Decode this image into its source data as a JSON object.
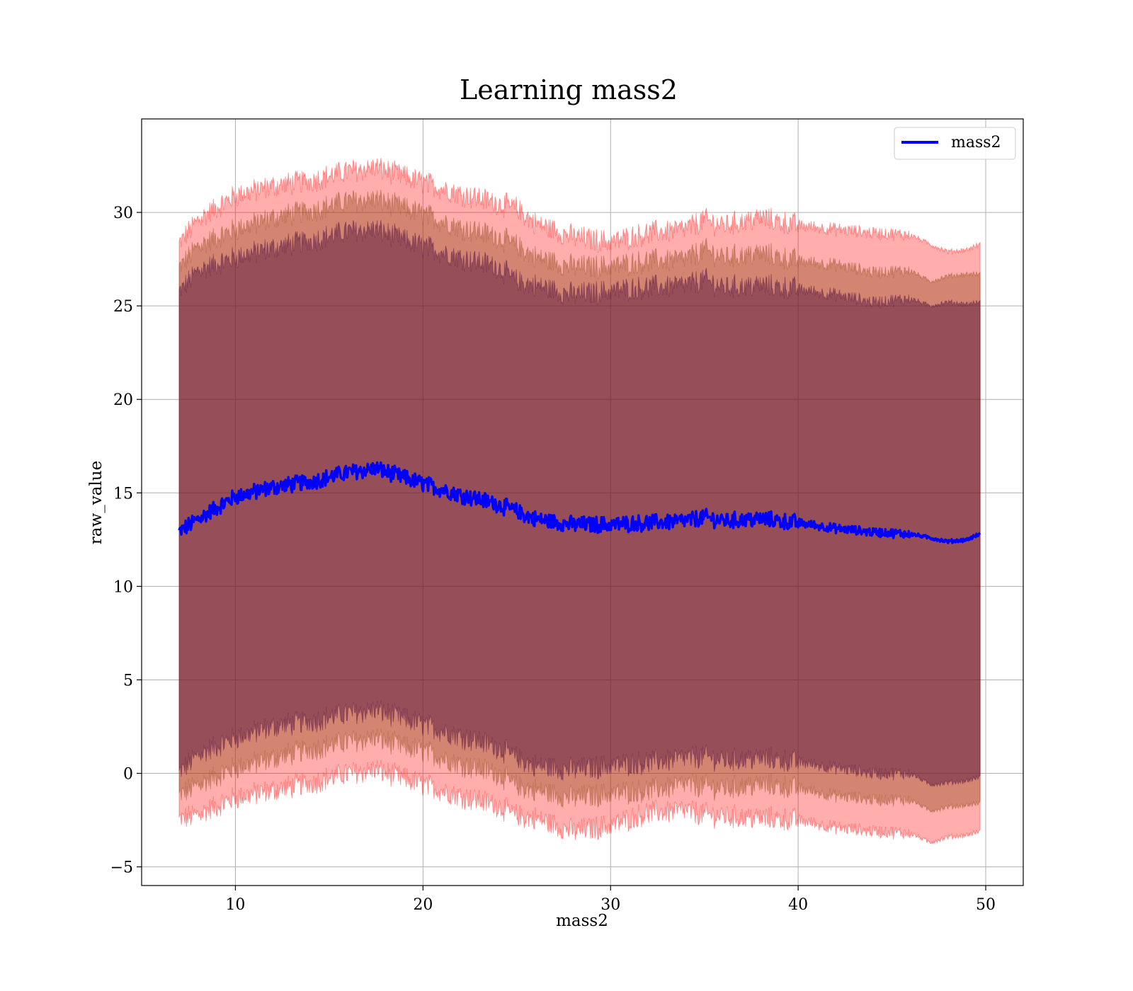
{
  "chart_data": {
    "type": "line",
    "title": "Learning mass2",
    "xlabel": "mass2",
    "ylabel": "raw_value",
    "xlim": [
      5,
      52
    ],
    "ylim": [
      -6,
      35
    ],
    "xticks": [
      10,
      20,
      30,
      40,
      50
    ],
    "yticks": [
      -5,
      0,
      5,
      10,
      15,
      20,
      25,
      30
    ],
    "ytick_labels": [
      "−5",
      "0",
      "5",
      "10",
      "15",
      "20",
      "25",
      "30"
    ],
    "grid": true,
    "legend": {
      "placement": "top-right",
      "entries": [
        "mass2"
      ]
    },
    "colors": {
      "line": "#0000ff",
      "outer_band": "#ff0000",
      "middle_band": "#8b4513",
      "inner_band": "#4b0a3c"
    },
    "x_range": [
      7,
      49.7
    ],
    "series": [
      {
        "name": "mass2",
        "x": [
          7,
          8,
          10,
          12,
          14,
          16,
          17.5,
          19,
          20,
          22,
          24,
          25,
          26,
          28,
          30,
          32,
          34,
          35,
          36,
          38,
          40,
          42,
          44,
          46,
          47,
          48,
          49,
          49.7
        ],
        "values": [
          12.9,
          13.6,
          14.8,
          15.3,
          15.6,
          16.1,
          16.3,
          15.8,
          15.5,
          14.9,
          14.4,
          14.0,
          13.6,
          13.3,
          13.3,
          13.4,
          13.5,
          13.7,
          13.5,
          13.6,
          13.4,
          13.1,
          12.9,
          12.8,
          12.6,
          12.4,
          12.5,
          12.8
        ]
      }
    ],
    "bands": [
      {
        "level": "outer",
        "upper": [
          28.3,
          29.6,
          30.9,
          31.4,
          31.7,
          32.2,
          32.4,
          31.9,
          31.6,
          31.0,
          30.5,
          30.2,
          29.4,
          28.7,
          28.4,
          28.9,
          29.1,
          29.6,
          29.3,
          29.7,
          29.3,
          29.1,
          28.9,
          28.8,
          28.3,
          27.9,
          28.0,
          28.3
        ],
        "lower": [
          -2.5,
          -2.2,
          -1.3,
          -0.9,
          -0.5,
          0.0,
          0.2,
          -0.3,
          -0.6,
          -1.2,
          -1.7,
          -2.3,
          -2.4,
          -3.1,
          -2.8,
          -2.1,
          -2.0,
          -2.2,
          -2.3,
          -2.4,
          -2.5,
          -2.9,
          -3.1,
          -3.2,
          -3.7,
          -3.4,
          -3.3,
          -3.1
        ]
      },
      {
        "level": "middle",
        "upper": [
          27.0,
          28.2,
          29.1,
          29.7,
          30.1,
          30.6,
          30.7,
          30.2,
          29.9,
          29.2,
          28.7,
          28.2,
          27.6,
          27.1,
          27.1,
          27.4,
          27.5,
          28.0,
          27.6,
          27.8,
          27.4,
          27.2,
          26.8,
          26.9,
          26.3,
          26.6,
          26.7,
          26.7
        ],
        "lower": [
          -1.2,
          -0.6,
          0.3,
          0.8,
          1.3,
          1.7,
          1.9,
          1.4,
          1.2,
          0.5,
          0.0,
          -0.7,
          -0.9,
          -1.3,
          -1.1,
          -0.9,
          -0.6,
          -0.7,
          -0.8,
          -0.6,
          -0.8,
          -1.2,
          -1.4,
          -1.4,
          -2.0,
          -1.8,
          -1.7,
          -1.6
        ]
      },
      {
        "level": "inner",
        "upper": [
          25.7,
          26.9,
          27.6,
          28.1,
          28.5,
          29.0,
          29.1,
          28.5,
          28.2,
          27.6,
          27.1,
          26.3,
          26.1,
          25.6,
          25.8,
          26.0,
          26.1,
          26.4,
          26.0,
          26.1,
          25.9,
          25.6,
          25.2,
          25.4,
          25.0,
          25.2,
          25.1,
          25.2
        ],
        "lower": [
          0.0,
          1.0,
          1.9,
          2.5,
          2.8,
          3.2,
          3.4,
          2.9,
          2.6,
          2.0,
          1.4,
          0.8,
          0.4,
          0.2,
          0.4,
          0.6,
          0.8,
          0.9,
          0.7,
          0.8,
          0.6,
          0.3,
          0.0,
          0.0,
          -0.6,
          -0.5,
          -0.4,
          -0.2
        ]
      }
    ]
  }
}
